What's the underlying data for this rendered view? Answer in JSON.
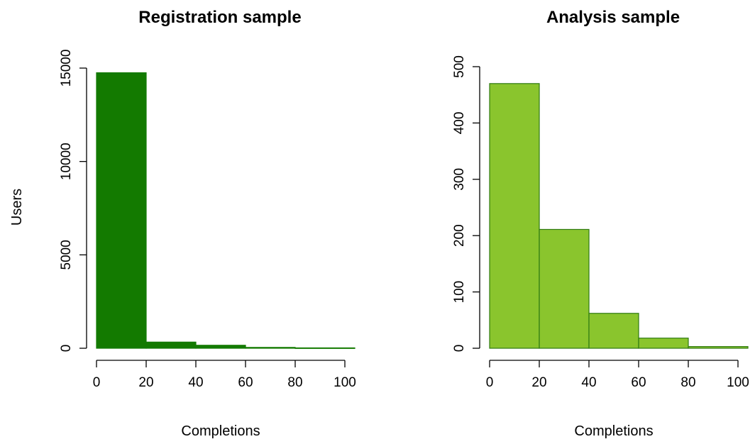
{
  "chart_data": [
    {
      "type": "bar",
      "title": "Registration sample",
      "xlabel": "Completions",
      "ylabel": "Users",
      "bins": [
        [
          0,
          20
        ],
        [
          20,
          40
        ],
        [
          40,
          60
        ],
        [
          60,
          80
        ],
        [
          80,
          104
        ]
      ],
      "values": [
        14750,
        330,
        160,
        45,
        20
      ],
      "xlim": [
        0,
        104
      ],
      "ylim": [
        0,
        15000
      ],
      "xticks": [
        0,
        20,
        40,
        60,
        80,
        100
      ],
      "yticks": [
        0,
        5000,
        10000,
        15000
      ],
      "fill": "#137a00",
      "stroke": "#137a00",
      "grid": false
    },
    {
      "type": "bar",
      "title": "Analysis sample",
      "xlabel": "Completions",
      "ylabel": "",
      "bins": [
        [
          0,
          20
        ],
        [
          20,
          40
        ],
        [
          40,
          60
        ],
        [
          60,
          80
        ],
        [
          80,
          104
        ]
      ],
      "values": [
        470,
        211,
        62,
        18,
        3
      ],
      "xlim": [
        0,
        104
      ],
      "ylim": [
        0,
        500
      ],
      "xticks": [
        0,
        20,
        40,
        60,
        80,
        100
      ],
      "yticks": [
        0,
        100,
        200,
        300,
        400,
        500
      ],
      "fill": "#8ac52d",
      "stroke": "#2f7a12",
      "grid": false
    }
  ]
}
